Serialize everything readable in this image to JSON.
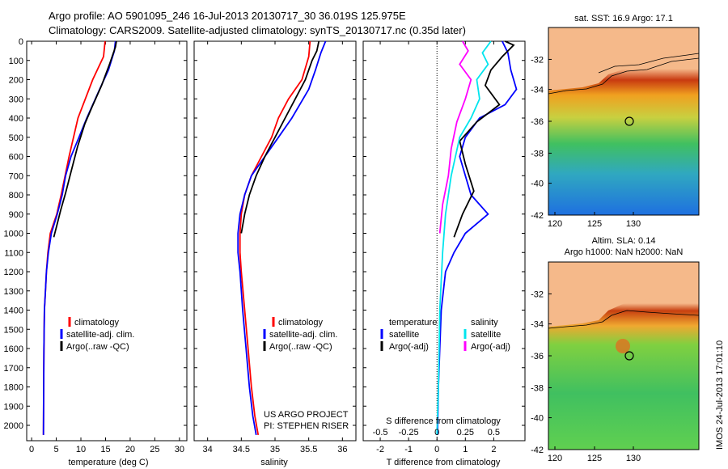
{
  "header": {
    "line1": "Argo profile: AO 5901095_246 16-Jul-2013 20130717_30 36.019S 125.975E",
    "line2": "Climatology: CARS2009. Satellite-adjusted climatology: synTS_20130717.nc (0.35d later)"
  },
  "colors": {
    "climatology": "#ff0000",
    "satellite": "#0000ff",
    "argo": "#000000",
    "salinity_satellite": "#00e5ee",
    "salinity_argo": "#ff00ff"
  },
  "depth_axis": {
    "ticks": [
      0,
      100,
      200,
      300,
      400,
      500,
      600,
      700,
      800,
      900,
      1000,
      1100,
      1200,
      1300,
      1400,
      1500,
      1600,
      1700,
      1800,
      1900,
      2000
    ],
    "range": [
      0,
      2080
    ]
  },
  "legend_lines": {
    "climatology": "climatology",
    "satellite_adj": "satellite-adj. clim.",
    "argo_raw": "Argo(..raw -QC)"
  },
  "diff_legend": {
    "temperature_title": "temperature",
    "salinity_title": "salinity",
    "satellite": "satellite",
    "argo_adj": "Argo(-adj)"
  },
  "credit": {
    "line1": "US ARGO PROJECT",
    "line2": "PI: STEPHEN RISER"
  },
  "maps": {
    "top_title": "sat. SST: 16.9 Argo: 17.1",
    "bottom_title1": "Altim. SLA: 0.14",
    "bottom_title2": "Argo h1000: NaN h2000: NaN",
    "x_ticks": [
      "120",
      "125",
      "130"
    ],
    "y_ticks": [
      "-32",
      "-34",
      "-36",
      "-38",
      "-40",
      "-42"
    ],
    "imos_stamp": "IMOS 24-Jul-2013 17:01:10"
  },
  "chart_data": [
    {
      "type": "line",
      "id": "temperature",
      "xlabel": "temperature (deg C)",
      "ylabel": "",
      "xlim": [
        -1,
        31.5
      ],
      "ylim": [
        0,
        2080
      ],
      "x_ticks": [
        0,
        5,
        10,
        15,
        20,
        25,
        30
      ],
      "series": [
        {
          "name": "climatology",
          "color_key": "climatology",
          "x": [
            14.9,
            14.6,
            12.4,
            10.9,
            9.4,
            8.5,
            7.6,
            6.8,
            6.0,
            5.1,
            3.8,
            3.3,
            3.0,
            2.8,
            2.6,
            2.5,
            2.45,
            2.4
          ],
          "depth": [
            0,
            80,
            200,
            300,
            400,
            500,
            600,
            700,
            800,
            900,
            1000,
            1100,
            1200,
            1300,
            1400,
            1600,
            1800,
            2050
          ]
        },
        {
          "name": "satellite-adj. clim.",
          "color_key": "satellite",
          "x": [
            17.0,
            16.8,
            15.6,
            13.8,
            11.2,
            9.6,
            8.0,
            6.9,
            6.2,
            5.2,
            4.0,
            3.4,
            3.0,
            2.8,
            2.6,
            2.5,
            2.45,
            2.4
          ],
          "depth": [
            0,
            50,
            150,
            250,
            400,
            500,
            600,
            700,
            800,
            900,
            1000,
            1100,
            1200,
            1300,
            1400,
            1600,
            1800,
            2050
          ]
        },
        {
          "name": "Argo(..raw -QC)",
          "color_key": "argo",
          "x": [
            17.2,
            17.0,
            15.8,
            14.2,
            12.3,
            10.8,
            9.3,
            8.0,
            6.9,
            5.9,
            5.1,
            4.5
          ],
          "depth": [
            0,
            30,
            120,
            230,
            340,
            430,
            550,
            680,
            790,
            880,
            960,
            1020
          ]
        }
      ]
    },
    {
      "type": "line",
      "id": "salinity",
      "xlabel": "salinity",
      "ylabel": "",
      "xlim": [
        33.8,
        36.2
      ],
      "ylim": [
        0,
        2080
      ],
      "x_ticks": [
        34,
        34.5,
        35,
        35.5,
        36
      ],
      "series": [
        {
          "name": "climatology",
          "color_key": "climatology",
          "x": [
            35.52,
            35.5,
            35.4,
            35.2,
            35.05,
            34.95,
            34.8,
            34.65,
            34.55,
            34.5,
            34.48,
            34.48,
            34.5,
            34.55,
            34.6,
            34.65,
            34.7,
            34.75
          ],
          "depth": [
            0,
            80,
            200,
            300,
            400,
            500,
            600,
            700,
            800,
            900,
            1000,
            1100,
            1200,
            1400,
            1600,
            1800,
            1950,
            2050
          ]
        },
        {
          "name": "satellite-adj. clim.",
          "color_key": "satellite",
          "x": [
            35.75,
            35.68,
            35.6,
            35.5,
            35.25,
            35.05,
            34.85,
            34.65,
            34.55,
            34.48,
            34.45,
            34.45,
            34.48,
            34.52,
            34.57,
            34.62,
            34.67,
            34.72
          ],
          "depth": [
            0,
            60,
            150,
            250,
            400,
            500,
            600,
            700,
            800,
            900,
            1000,
            1100,
            1200,
            1400,
            1600,
            1800,
            1950,
            2050
          ]
        },
        {
          "name": "Argo(..raw -QC)",
          "color_key": "argo",
          "x": [
            35.65,
            35.62,
            35.55,
            35.45,
            35.3,
            35.15,
            35.0,
            34.85,
            34.72,
            34.62,
            34.55,
            34.5
          ],
          "depth": [
            0,
            50,
            100,
            200,
            300,
            400,
            500,
            600,
            700,
            800,
            900,
            1000
          ]
        }
      ]
    },
    {
      "type": "line",
      "id": "differences",
      "xlabel": "T difference from climatology",
      "xlabel_top": "S difference from climatology",
      "ylabel": "",
      "xlim": [
        -2.6,
        3.1
      ],
      "ylim": [
        0,
        2080
      ],
      "x_ticks_T": [
        -2,
        -1,
        0,
        1,
        2
      ],
      "x_ticks_S": [
        "-0.5",
        "-0.25",
        "0",
        "0.25",
        "0.5"
      ],
      "zero_line": 0,
      "series": [
        {
          "name": "temperature satellite",
          "color_key": "satellite",
          "x": [
            2.3,
            2.5,
            2.6,
            2.8,
            2.4,
            1.5,
            1.0,
            0.8,
            1.2,
            1.8,
            1.0,
            0.6,
            0.3,
            0.15,
            0.1,
            0.05,
            0.02
          ],
          "depth": [
            0,
            60,
            150,
            250,
            330,
            400,
            500,
            600,
            800,
            900,
            1000,
            1100,
            1200,
            1400,
            1600,
            1800,
            2050
          ]
        },
        {
          "name": "temperature Argo(-adj)",
          "color_key": "argo",
          "x": [
            2.4,
            2.7,
            2.3,
            1.9,
            1.7,
            2.2,
            1.4,
            0.8,
            1.0,
            1.3,
            0.9,
            0.6
          ],
          "depth": [
            0,
            20,
            80,
            150,
            230,
            330,
            420,
            520,
            640,
            780,
            900,
            1020
          ]
        },
        {
          "name": "salinity satellite",
          "color_key": "salinity_satellite",
          "x": [
            1.9,
            1.6,
            1.8,
            1.4,
            1.5,
            1.2,
            0.8,
            0.5,
            0.3,
            0.2,
            0.1,
            0.05,
            0.0
          ],
          "depth": [
            0,
            60,
            120,
            200,
            300,
            400,
            500,
            700,
            900,
            1100,
            1400,
            1800,
            2050
          ]
        },
        {
          "name": "salinity Argo(-adj)",
          "color_key": "salinity_argo",
          "x": [
            0.9,
            1.1,
            0.8,
            1.2,
            1.0,
            0.7,
            0.5,
            0.4,
            0.2,
            0.1
          ],
          "depth": [
            0,
            50,
            120,
            200,
            300,
            420,
            560,
            700,
            850,
            1000
          ]
        }
      ]
    }
  ]
}
